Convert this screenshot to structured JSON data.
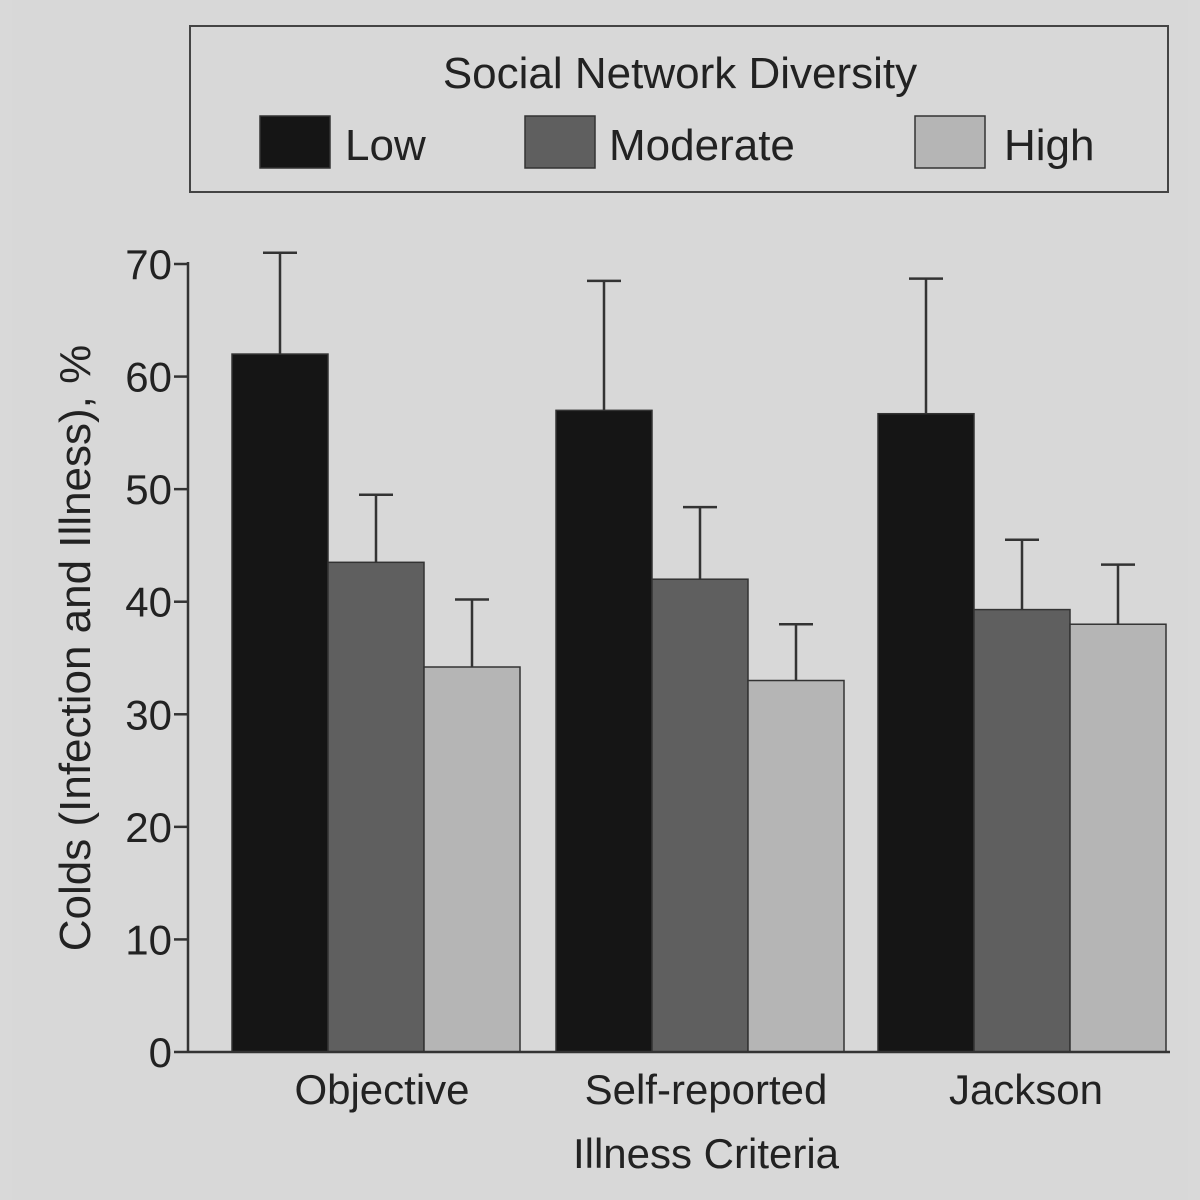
{
  "chart_data": {
    "type": "bar",
    "categories": [
      "Objective",
      "Self-reported",
      "Jackson"
    ],
    "xlabel": "Illness Criteria",
    "ylabel": "Colds (Infection and Illness), %",
    "ylim": [
      0,
      70
    ],
    "yticks": [
      0,
      10,
      20,
      30,
      40,
      50,
      60,
      70
    ],
    "grid": false,
    "legend": {
      "title": "Social Network Diversity",
      "placement": "top"
    },
    "series": [
      {
        "name": "Low",
        "color": "#151515",
        "values": [
          62,
          57,
          56.7
        ],
        "error": [
          9,
          11.5,
          12
        ]
      },
      {
        "name": "Moderate",
        "color": "#5f5f5f",
        "values": [
          43.5,
          42,
          39.3
        ],
        "error": [
          6,
          6.4,
          6.2
        ]
      },
      {
        "name": "High",
        "color": "#b5b5b5",
        "values": [
          34.2,
          33,
          38
        ],
        "error": [
          6,
          5,
          5.3
        ]
      }
    ]
  }
}
